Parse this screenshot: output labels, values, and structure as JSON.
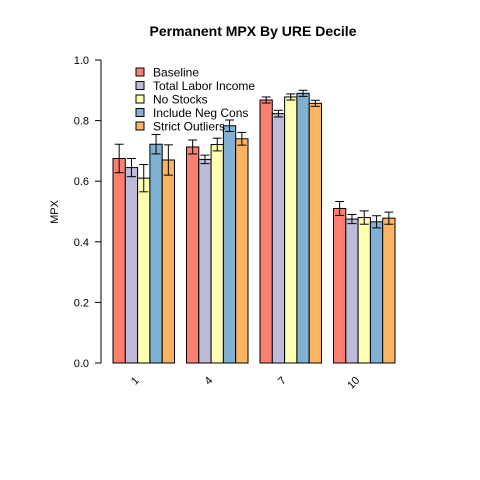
{
  "chart_data": {
    "type": "bar",
    "title": "Permanent MPX By URE Decile",
    "xlabel": "",
    "ylabel": "MPX",
    "ylim": [
      0,
      1.0
    ],
    "yticks": [
      "0.0",
      "0.2",
      "0.4",
      "0.6",
      "0.8",
      "1.0"
    ],
    "categories": [
      "1",
      "4",
      "7",
      "10"
    ],
    "legend_position": "top-left",
    "grid": false,
    "series": [
      {
        "name": "Baseline",
        "color": "#fb8072",
        "values": [
          0.675,
          0.713,
          0.868,
          0.51
        ],
        "lower": [
          0.628,
          0.69,
          0.858,
          0.487
        ],
        "upper": [
          0.722,
          0.736,
          0.878,
          0.533
        ]
      },
      {
        "name": "Total Labor Income",
        "color": "#bebada",
        "values": [
          0.645,
          0.672,
          0.823,
          0.475
        ],
        "lower": [
          0.615,
          0.658,
          0.812,
          0.46
        ],
        "upper": [
          0.675,
          0.686,
          0.834,
          0.49
        ]
      },
      {
        "name": "No Stocks",
        "color": "#ffffb3",
        "values": [
          0.61,
          0.721,
          0.878,
          0.48
        ],
        "lower": [
          0.565,
          0.7,
          0.868,
          0.458
        ],
        "upper": [
          0.655,
          0.742,
          0.888,
          0.502
        ]
      },
      {
        "name": "Include Neg Cons",
        "color": "#80b1d3",
        "values": [
          0.722,
          0.783,
          0.89,
          0.466
        ],
        "lower": [
          0.69,
          0.764,
          0.88,
          0.446
        ],
        "upper": [
          0.754,
          0.802,
          0.9,
          0.486
        ]
      },
      {
        "name": "Strict Outliers",
        "color": "#fdb462",
        "values": [
          0.67,
          0.74,
          0.857,
          0.478
        ],
        "lower": [
          0.62,
          0.719,
          0.847,
          0.458
        ],
        "upper": [
          0.72,
          0.761,
          0.867,
          0.498
        ]
      }
    ]
  }
}
